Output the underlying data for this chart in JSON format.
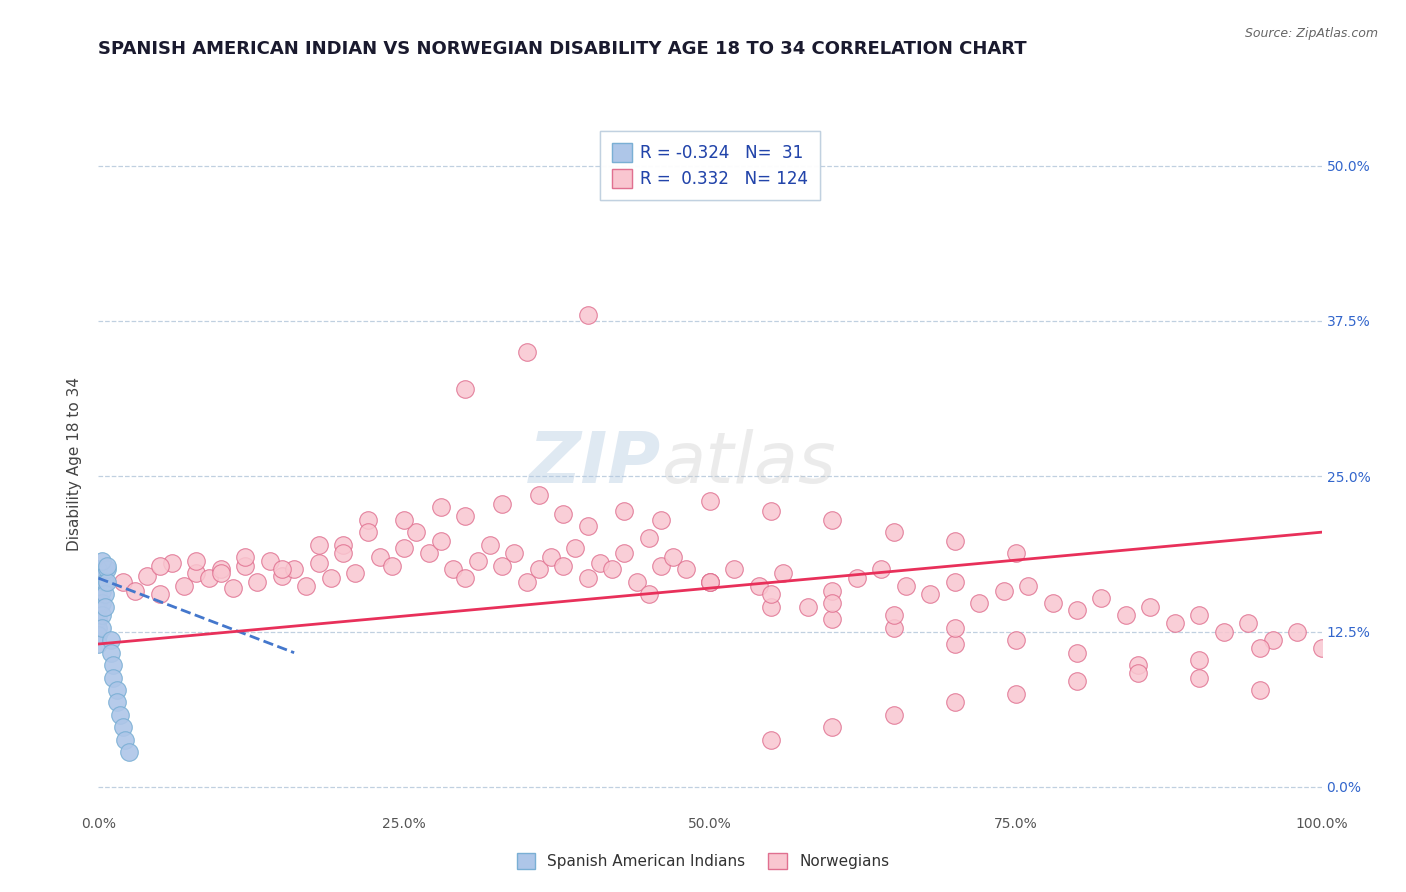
{
  "title": "SPANISH AMERICAN INDIAN VS NORWEGIAN DISABILITY AGE 18 TO 34 CORRELATION CHART",
  "source_text": "Source: ZipAtlas.com",
  "xlabel": "",
  "ylabel": "Disability Age 18 to 34",
  "x_min": 0.0,
  "x_max": 1.0,
  "y_min": -0.02,
  "y_max": 0.54,
  "x_ticks": [
    0.0,
    0.25,
    0.5,
    0.75,
    1.0
  ],
  "x_tick_labels": [
    "0.0%",
    "25.0%",
    "50.0%",
    "75.0%",
    "100.0%"
  ],
  "y_ticks": [
    0.0,
    0.125,
    0.25,
    0.375,
    0.5
  ],
  "y_tick_labels_right": [
    "0.0%",
    "12.5%",
    "25.0%",
    "37.5%",
    "50.0%"
  ],
  "blue_color": "#aec6e8",
  "blue_edge_color": "#7aafd4",
  "pink_color": "#f9c6d0",
  "pink_edge_color": "#e07090",
  "blue_line_color": "#4477cc",
  "pink_line_color": "#e8305a",
  "grid_color": "#c0d0e0",
  "background_color": "#ffffff",
  "watermark_zip": "ZIP",
  "watermark_atlas": "atlas",
  "legend_R_blue": "-0.324",
  "legend_N_blue": "31",
  "legend_R_pink": "0.332",
  "legend_N_pink": "124",
  "legend_label_blue": "Spanish American Indians",
  "legend_label_pink": "Norwegians",
  "title_fontsize": 13,
  "axis_label_fontsize": 11,
  "tick_fontsize": 10,
  "blue_scatter_x": [
    0.0,
    0.0,
    0.0,
    0.0,
    0.0,
    0.0,
    0.0,
    0.0,
    0.0,
    0.0,
    0.003,
    0.003,
    0.003,
    0.003,
    0.005,
    0.005,
    0.005,
    0.007,
    0.007,
    0.01,
    0.01,
    0.012,
    0.012,
    0.015,
    0.015,
    0.018,
    0.02,
    0.022,
    0.025,
    0.003,
    0.007
  ],
  "blue_scatter_y": [
    0.175,
    0.168,
    0.162,
    0.155,
    0.148,
    0.142,
    0.135,
    0.128,
    0.122,
    0.115,
    0.158,
    0.148,
    0.138,
    0.128,
    0.165,
    0.155,
    0.145,
    0.175,
    0.165,
    0.118,
    0.108,
    0.098,
    0.088,
    0.078,
    0.068,
    0.058,
    0.048,
    0.038,
    0.028,
    0.182,
    0.178
  ],
  "pink_scatter_x": [
    0.02,
    0.03,
    0.04,
    0.05,
    0.06,
    0.07,
    0.08,
    0.09,
    0.1,
    0.11,
    0.12,
    0.13,
    0.14,
    0.15,
    0.16,
    0.17,
    0.18,
    0.19,
    0.2,
    0.21,
    0.22,
    0.23,
    0.24,
    0.25,
    0.26,
    0.27,
    0.28,
    0.29,
    0.3,
    0.31,
    0.32,
    0.33,
    0.34,
    0.35,
    0.36,
    0.37,
    0.38,
    0.39,
    0.4,
    0.41,
    0.42,
    0.43,
    0.44,
    0.45,
    0.46,
    0.47,
    0.48,
    0.5,
    0.52,
    0.54,
    0.56,
    0.58,
    0.6,
    0.62,
    0.64,
    0.66,
    0.68,
    0.7,
    0.72,
    0.74,
    0.76,
    0.78,
    0.8,
    0.82,
    0.84,
    0.86,
    0.88,
    0.9,
    0.92,
    0.94,
    0.96,
    0.98,
    1.0,
    0.05,
    0.08,
    0.1,
    0.12,
    0.15,
    0.18,
    0.2,
    0.22,
    0.25,
    0.28,
    0.3,
    0.33,
    0.36,
    0.38,
    0.4,
    0.43,
    0.46,
    0.5,
    0.55,
    0.6,
    0.65,
    0.7,
    0.75,
    0.45,
    0.5,
    0.55,
    0.6,
    0.65,
    0.7,
    0.75,
    0.8,
    0.85,
    0.9,
    0.95,
    0.55,
    0.6,
    0.65,
    0.7,
    0.75,
    0.8,
    0.85,
    0.9,
    0.95,
    0.3,
    0.35,
    0.4,
    0.5,
    0.55,
    0.6,
    0.65,
    0.7
  ],
  "pink_scatter_y": [
    0.165,
    0.158,
    0.17,
    0.155,
    0.18,
    0.162,
    0.172,
    0.168,
    0.175,
    0.16,
    0.178,
    0.165,
    0.182,
    0.17,
    0.175,
    0.162,
    0.18,
    0.168,
    0.195,
    0.172,
    0.215,
    0.185,
    0.178,
    0.192,
    0.205,
    0.188,
    0.198,
    0.175,
    0.168,
    0.182,
    0.195,
    0.178,
    0.188,
    0.165,
    0.175,
    0.185,
    0.178,
    0.192,
    0.168,
    0.18,
    0.175,
    0.188,
    0.165,
    0.2,
    0.178,
    0.185,
    0.175,
    0.165,
    0.175,
    0.162,
    0.172,
    0.145,
    0.158,
    0.168,
    0.175,
    0.162,
    0.155,
    0.165,
    0.148,
    0.158,
    0.162,
    0.148,
    0.142,
    0.152,
    0.138,
    0.145,
    0.132,
    0.138,
    0.125,
    0.132,
    0.118,
    0.125,
    0.112,
    0.178,
    0.182,
    0.172,
    0.185,
    0.175,
    0.195,
    0.188,
    0.205,
    0.215,
    0.225,
    0.218,
    0.228,
    0.235,
    0.22,
    0.21,
    0.222,
    0.215,
    0.23,
    0.222,
    0.215,
    0.205,
    0.198,
    0.188,
    0.155,
    0.165,
    0.145,
    0.135,
    0.128,
    0.115,
    0.118,
    0.108,
    0.098,
    0.088,
    0.078,
    0.038,
    0.048,
    0.058,
    0.068,
    0.075,
    0.085,
    0.092,
    0.102,
    0.112,
    0.32,
    0.35,
    0.38,
    0.165,
    0.155,
    0.148,
    0.138,
    0.128
  ],
  "blue_line_x0": 0.0,
  "blue_line_x1": 0.16,
  "blue_line_y0": 0.168,
  "blue_line_y1": 0.108,
  "pink_line_x0": 0.0,
  "pink_line_x1": 1.0,
  "pink_line_y0": 0.115,
  "pink_line_y1": 0.205
}
